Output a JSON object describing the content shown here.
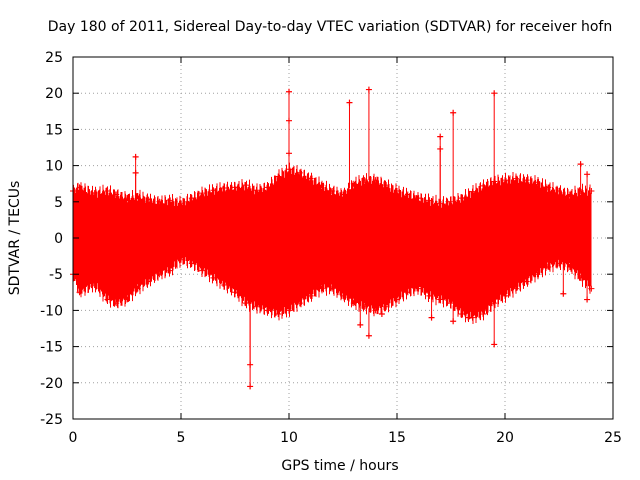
{
  "chart_data": {
    "type": "scatter",
    "title": "Day 180 of 2011, Sidereal Day-to-day VTEC variation (SDTVAR) for receiver hofn",
    "xlabel": "GPS time / hours",
    "ylabel": "SDTVAR / TECUs",
    "xlim": [
      0,
      25
    ],
    "ylim": [
      -25,
      25
    ],
    "xticks": [
      0,
      5,
      10,
      15,
      20,
      25
    ],
    "yticks": [
      -25,
      -20,
      -15,
      -10,
      -5,
      0,
      5,
      10,
      15,
      20,
      25
    ],
    "grid": true,
    "series": [
      {
        "name": "SDTVAR",
        "color": "#ff0000",
        "marker": "plus",
        "envelope": {
          "x": [
            0.0,
            0.3,
            1.0,
            1.6,
            2.0,
            2.5,
            3.0,
            3.5,
            4.0,
            4.5,
            5.0,
            5.5,
            6.0,
            6.5,
            7.0,
            7.5,
            8.0,
            8.5,
            9.0,
            9.5,
            10.0,
            10.5,
            11.0,
            11.5,
            12.0,
            12.5,
            13.0,
            13.5,
            14.0,
            14.5,
            15.0,
            15.5,
            16.0,
            16.5,
            17.0,
            17.5,
            18.0,
            18.5,
            19.0,
            19.5,
            20.0,
            20.5,
            21.0,
            21.5,
            22.0,
            22.5,
            23.0,
            23.5,
            24.0
          ],
          "upper": [
            6.5,
            7.0,
            6.2,
            6.5,
            6.0,
            5.5,
            5.8,
            5.3,
            5.0,
            5.2,
            4.8,
            5.5,
            6.2,
            6.6,
            6.9,
            7.0,
            7.3,
            6.6,
            7.0,
            8.5,
            9.5,
            9.0,
            8.2,
            7.3,
            6.5,
            6.0,
            7.5,
            8.0,
            8.0,
            7.3,
            6.5,
            6.0,
            5.5,
            5.2,
            4.8,
            5.0,
            5.5,
            6.4,
            7.2,
            7.8,
            8.0,
            8.2,
            8.0,
            7.7,
            7.0,
            6.5,
            6.0,
            6.5,
            6.5
          ],
          "lower": [
            -5.0,
            -7.5,
            -6.5,
            -8.5,
            -9.0,
            -8.5,
            -7.0,
            -6.0,
            -5.0,
            -4.5,
            -3.0,
            -3.5,
            -4.5,
            -5.5,
            -6.5,
            -7.5,
            -9.0,
            -9.5,
            -10.0,
            -10.5,
            -10.0,
            -9.0,
            -8.0,
            -7.0,
            -7.0,
            -8.0,
            -9.0,
            -9.5,
            -10.0,
            -9.5,
            -8.5,
            -7.5,
            -7.0,
            -8.0,
            -8.5,
            -9.0,
            -10.5,
            -11.0,
            -10.5,
            -9.0,
            -8.0,
            -7.0,
            -6.0,
            -5.0,
            -4.0,
            -3.5,
            -4.0,
            -5.5,
            -7.0
          ]
        },
        "outliers": [
          {
            "x": 2.9,
            "y": 11.2
          },
          {
            "x": 2.9,
            "y": 9.0
          },
          {
            "x": 8.2,
            "y": -20.5
          },
          {
            "x": 8.2,
            "y": -17.5
          },
          {
            "x": 10.0,
            "y": 20.2
          },
          {
            "x": 10.0,
            "y": 16.2
          },
          {
            "x": 10.0,
            "y": 11.7
          },
          {
            "x": 12.8,
            "y": 18.7
          },
          {
            "x": 13.7,
            "y": 20.5
          },
          {
            "x": 13.7,
            "y": -13.5
          },
          {
            "x": 13.3,
            "y": -12.0
          },
          {
            "x": 14.3,
            "y": -10.5
          },
          {
            "x": 15.9,
            "y": 5.5
          },
          {
            "x": 16.6,
            "y": -11.0
          },
          {
            "x": 17.0,
            "y": 14.0
          },
          {
            "x": 17.0,
            "y": 12.3
          },
          {
            "x": 17.6,
            "y": 17.3
          },
          {
            "x": 17.6,
            "y": -11.5
          },
          {
            "x": 18.3,
            "y": -11.0
          },
          {
            "x": 19.5,
            "y": 20.0
          },
          {
            "x": 19.5,
            "y": -14.7
          },
          {
            "x": 22.7,
            "y": -7.7
          },
          {
            "x": 23.5,
            "y": 10.2
          },
          {
            "x": 23.8,
            "y": 8.8
          },
          {
            "x": 23.8,
            "y": -8.5
          }
        ]
      }
    ]
  }
}
